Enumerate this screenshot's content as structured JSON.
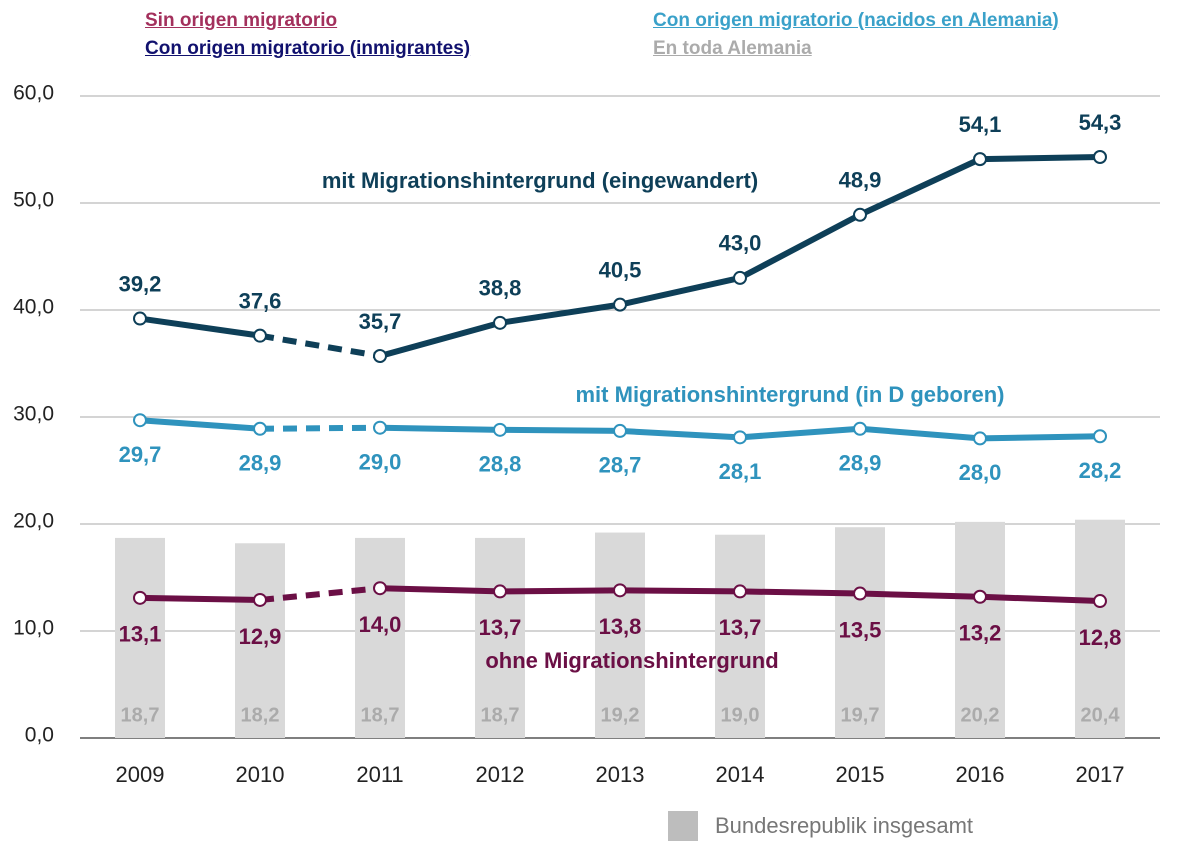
{
  "chart_data": {
    "type": "line",
    "categories": [
      "2009",
      "2010",
      "2011",
      "2012",
      "2013",
      "2014",
      "2015",
      "2016",
      "2017"
    ],
    "ylim": [
      0,
      60
    ],
    "yticks": [
      {
        "value": 0,
        "label": "0,0"
      },
      {
        "value": 10,
        "label": "10,0"
      },
      {
        "value": 20,
        "label": "20,0"
      },
      {
        "value": 30,
        "label": "30,0"
      },
      {
        "value": 40,
        "label": "40,0"
      },
      {
        "value": 50,
        "label": "50,0"
      },
      {
        "value": 60,
        "label": "60,0"
      }
    ],
    "grid": true,
    "series": [
      {
        "name": "En toda Alemania",
        "label": "Bundesrepublik insgesamt",
        "kind": "bar",
        "color": "#d9d9d9",
        "label_color": "#ababab",
        "values": [
          18.7,
          18.2,
          18.7,
          18.7,
          19.2,
          19.0,
          19.7,
          20.2,
          20.4
        ],
        "value_labels": [
          "18,7",
          "18,2",
          "18,7",
          "18,7",
          "19,2",
          "19,0",
          "19,7",
          "20,2",
          "20,4"
        ]
      },
      {
        "name": "Con origen migratorio (inmigrantes)",
        "label": "mit Migrationshintergrund (eingewandert)",
        "kind": "line",
        "color": "#0e3f58",
        "legend_color": "#11116e",
        "label_side": "above",
        "dashed": [
          [
            1,
            2
          ]
        ],
        "values": [
          39.2,
          37.6,
          35.7,
          38.8,
          40.5,
          43.0,
          48.9,
          54.1,
          54.3
        ],
        "value_labels": [
          "39,2",
          "37,6",
          "35,7",
          "38,8",
          "40,5",
          "43,0",
          "48,9",
          "54,1",
          "54,3"
        ]
      },
      {
        "name": "Con origen migratorio (nacidos en Alemania)",
        "label": "mit Migrationshintergrund (in D geboren)",
        "kind": "line",
        "color": "#2f93bd",
        "legend_color": "#3aa1c9",
        "label_side": "below",
        "dashed": [
          [
            1,
            2
          ]
        ],
        "values": [
          29.7,
          28.9,
          29.0,
          28.8,
          28.7,
          28.1,
          28.9,
          28.0,
          28.2
        ],
        "value_labels": [
          "29,7",
          "28,9",
          "29,0",
          "28,8",
          "28,7",
          "28,1",
          "28,9",
          "28,0",
          "28,2"
        ]
      },
      {
        "name": "Sin origen migratorio",
        "label": "ohne Migrationshintergrund",
        "kind": "line",
        "color": "#6b0f45",
        "legend_color": "#a3305c",
        "label_side": "below",
        "dashed": [
          [
            1,
            2
          ]
        ],
        "values": [
          13.1,
          12.9,
          14.0,
          13.7,
          13.8,
          13.7,
          13.5,
          13.2,
          12.8
        ],
        "value_labels": [
          "13,1",
          "12,9",
          "14,0",
          "13,7",
          "13,8",
          "13,7",
          "13,5",
          "13,2",
          "12,8"
        ]
      }
    ]
  }
}
